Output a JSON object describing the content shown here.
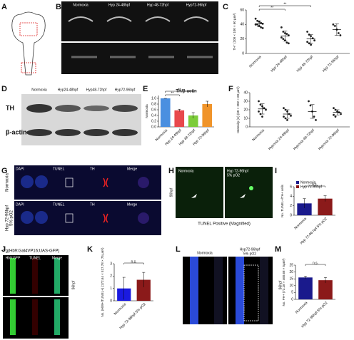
{
  "panel_letters": [
    "A",
    "B",
    "C",
    "D",
    "E",
    "F",
    "G",
    "H",
    "I",
    "J",
    "K",
    "L",
    "M"
  ],
  "B": {
    "columns": [
      "Normoxia",
      "Hyp 24-48hpf",
      "Hyp 48-72hpf",
      "Hyp72-96hpf"
    ]
  },
  "D": {
    "columns": [
      "Normoxia",
      "Hyp24-48hpf",
      "Hyp48-72hpf",
      "Hyp72-96hpf"
    ],
    "rows": [
      "TH",
      "β-actin"
    ]
  },
  "G": {
    "channels": [
      "DAPI",
      "TUNEL",
      "TH",
      "Merge"
    ],
    "rows": [
      [
        "Normoxia"
      ],
      [
        "Hyp 72-96hpf",
        "5% pO2"
      ]
    ]
  },
  "H": {
    "left": "Normoxia",
    "right": [
      "Hyp 72-96hpf",
      "5% pO2"
    ],
    "side": "96hpf",
    "caption": "TUNEL Positive (Magnified)"
  },
  "J": {
    "title": "Tg(Hb9:Gal4VP16;UAS-GFP)",
    "channels": [
      "Hb9:GFP",
      "TUNEL",
      "Merge"
    ],
    "side": "96hpf"
  },
  "L": {
    "left": "Normoxia",
    "right": [
      "Hyp72-96hpf",
      "5% pO2"
    ],
    "side": "96hpf"
  },
  "chart_data": [
    {
      "type": "dotplot",
      "ylabel": "TH⁺ (100 × 100 × 60 μm³)",
      "categories": [
        "Normoxia",
        "Hyp 24-48hpf",
        "Hyp 48-72hpf",
        "Hyp 72-96hpf"
      ],
      "points": [
        [
          48,
          45,
          44,
          42,
          41,
          40,
          40,
          38,
          36,
          35
        ],
        [
          36,
          30,
          28,
          27,
          25,
          22,
          20,
          18,
          15,
          14
        ],
        [
          30,
          26,
          24,
          21,
          18,
          16,
          14,
          12
        ],
        [
          40,
          38,
          33,
          28,
          25
        ]
      ],
      "means": [
        41,
        24,
        20,
        33
      ],
      "errors": [
        4,
        7,
        6,
        8
      ],
      "ylim": [
        0,
        60
      ],
      "yticks": [
        0,
        20,
        40,
        60
      ],
      "annotations": [
        "**",
        "**"
      ]
    },
    {
      "type": "bar",
      "title": "TH/β-actin",
      "ylabel": "Normoxia",
      "categories": [
        "Normoxia",
        "Hyp 24-48hpf",
        "Hyp 48-72hpf",
        "Hyp 72-96hpf"
      ],
      "values": [
        1.0,
        0.58,
        0.4,
        0.8
      ],
      "errors": [
        0,
        0.04,
        0.1,
        0.1
      ],
      "colors": [
        "#4a8fe0",
        "#e8484c",
        "#7ccc3a",
        "#f0942a"
      ],
      "ylim": [
        0,
        1.1
      ],
      "yticks": [
        {
          "value": 0,
          "label": "0.0"
        },
        0.2,
        0.4,
        0.6,
        0.8,
        {
          "value": 1,
          "label": "1.0"
        }
      ],
      "annotations": [
        "**",
        "**"
      ]
    },
    {
      "type": "dotplot",
      "ylabel": "Intensity (U) (60 × 202 × 60 μm³)",
      "categories": [
        "Normoxia",
        "Hypoxia 24-48hpf",
        "Hypoxia 48-72hpf",
        "Hypoxia 72-96hpf"
      ],
      "points": [
        [
          30,
          26,
          24,
          22,
          20,
          18,
          15,
          12
        ],
        [
          22,
          20,
          18,
          15,
          13,
          12,
          10,
          8
        ],
        [
          30,
          25,
          18,
          12,
          8
        ],
        [
          22,
          20,
          18,
          17,
          15,
          14,
          12
        ]
      ],
      "means": [
        21,
        15,
        18,
        17
      ],
      "errors": [
        6,
        5,
        8,
        3
      ],
      "ylim": [
        0,
        40
      ],
      "yticks": [
        0,
        10,
        20,
        30,
        40
      ]
    },
    {
      "type": "bar",
      "ylabel": "No. TUNEL+/TH+ cells",
      "categories": [
        "Normoxia",
        "Hyp 72-96 hpf 5% pO2"
      ],
      "values": [
        2.5,
        3.5
      ],
      "errors": [
        1,
        0.6
      ],
      "colors": [
        "#1a1a8c",
        "#8b1a1a"
      ],
      "legend": [
        "Normoxia",
        "Hyp 72-96hpf"
      ],
      "ylim": [
        0,
        6
      ],
      "yticks": [
        0,
        2,
        4,
        6
      ],
      "annotations": [
        "n.s."
      ]
    },
    {
      "type": "bar",
      "ylabel": "No. (Hb9+/TUNEL+) (172.64 × 517.78 × 75 μm³)",
      "categories": [
        "Normoxia",
        "Hyp 72-96hpf 5% pO2"
      ],
      "values": [
        1,
        1.7
      ],
      "errors": [
        0.9,
        0.6
      ],
      "colors": [
        "#1a1ae0",
        "#8b1a1a"
      ],
      "ylim": [
        0,
        3
      ],
      "yticks": [
        0,
        1,
        2,
        3
      ],
      "annotations": [
        "n.s."
      ]
    },
    {
      "type": "bar",
      "ylabel": "No. PH+ (73.28 × 460.68 × 5μm³)",
      "categories": [
        "Normoxia",
        "Hyp 72-96hpf 5% pO2"
      ],
      "values": [
        16,
        14
      ],
      "errors": [
        1,
        2
      ],
      "colors": [
        "#1a1a8c",
        "#8b1a1a"
      ],
      "ylim": [
        0,
        25
      ],
      "yticks": [
        0,
        5,
        10,
        15,
        20,
        25
      ],
      "annotations": [
        "n.s."
      ]
    }
  ]
}
